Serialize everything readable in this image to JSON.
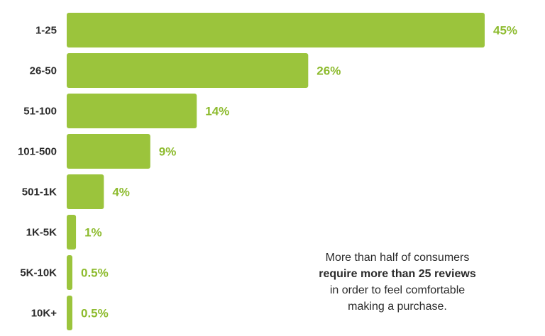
{
  "chart_data": {
    "type": "bar",
    "orientation": "horizontal",
    "categories": [
      "1-25",
      "26-50",
      "51-100",
      "101-500",
      "501-1K",
      "1K-5K",
      "5K-10K",
      "10K+"
    ],
    "values": [
      45,
      26,
      14,
      9,
      4,
      1,
      0.5,
      0.5
    ],
    "value_labels": [
      "45%",
      "26%",
      "14%",
      "9%",
      "4%",
      "1%",
      "0.5%",
      "0.5%"
    ],
    "xlim": [
      0,
      45
    ],
    "grid": false,
    "colors": {
      "bar": "#9bc43c",
      "value_label": "#8dbb2e"
    }
  },
  "annotation": {
    "line1": "More than half of consumers",
    "line2": "require more than 25 reviews",
    "line3": "in order to feel comfortable",
    "line4": "making a purchase."
  }
}
